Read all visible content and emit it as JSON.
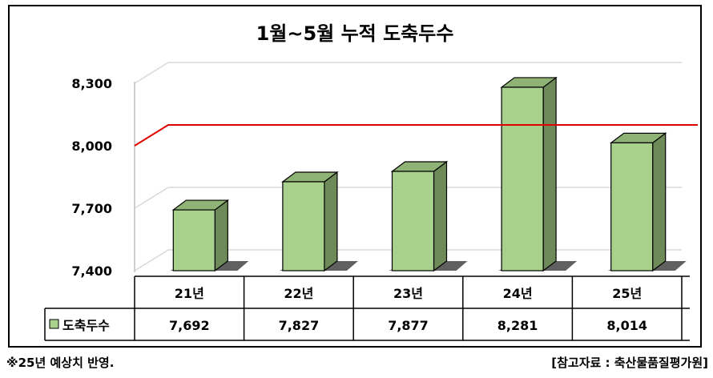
{
  "chart_data": {
    "type": "bar",
    "title": "1월~5월 누적 도축두수",
    "categories": [
      "21년",
      "22년",
      "23년",
      "24년",
      "25년"
    ],
    "series": [
      {
        "name": "도축두수",
        "values": [
          7692,
          7827,
          7877,
          8281,
          8014
        ]
      }
    ],
    "value_labels": [
      "7,692",
      "7,827",
      "7,877",
      "8,281",
      "8,014"
    ],
    "yticks": [
      "7,400",
      "7,700",
      "8,000",
      "8,300"
    ],
    "ytick_values": [
      7400,
      7700,
      8000,
      8300
    ],
    "ylim": [
      7400,
      8300
    ],
    "reference_line": 8100,
    "grid": true,
    "legend": "data-table",
    "colors": {
      "bar_front": "#a9d18e",
      "bar_side": "#6e8a58",
      "bar_top": "#8fb375",
      "reference_line": "#e00000"
    }
  },
  "footer": {
    "note": "※25년 예상치 반영.",
    "source": "[참고자료 : 축산물품질평가원]"
  }
}
